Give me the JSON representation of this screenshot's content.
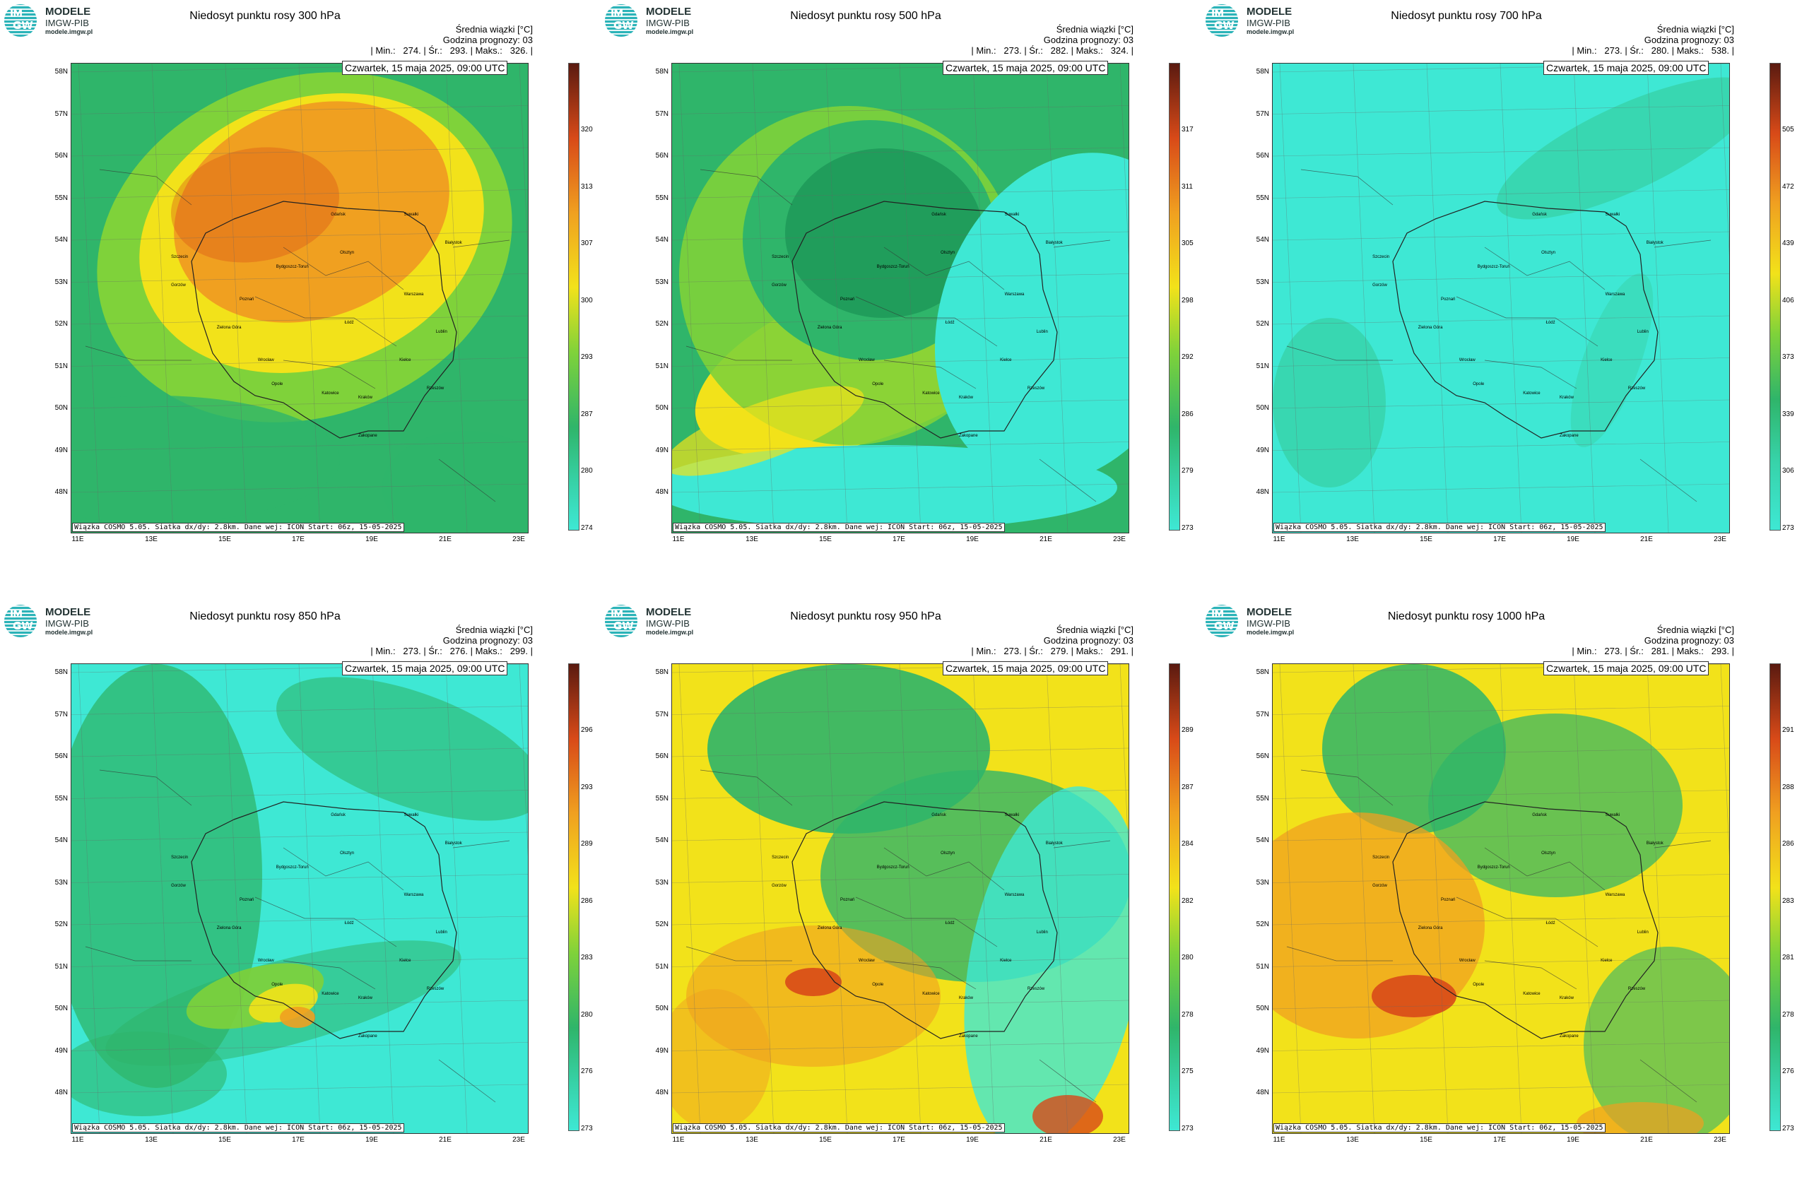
{
  "logo": {
    "brand": "MODELE",
    "org": "IMGW-PIB",
    "url": "modele.imgw.pl",
    "mark_top": "IM",
    "mark_bottom": "GW"
  },
  "common": {
    "stat_label": "Średnia wiązki [°C]",
    "forecast_hour": "Godzina prognozy: 03",
    "date": "Czwartek, 15 maja 2025, 09:00 UTC",
    "footer": "Wiązka COSMO 5.05. Siatka dx/dy: 2.8km. Dane wej: ICON Start: 06z, 15-05-2025",
    "lat_labels": [
      "58N",
      "57N",
      "56N",
      "55N",
      "54N",
      "53N",
      "52N",
      "51N",
      "50N",
      "49N",
      "48N"
    ],
    "lon_labels": [
      "11E",
      "13E",
      "15E",
      "17E",
      "19E",
      "21E",
      "23E"
    ],
    "cities": [
      "Gdańsk",
      "Olsztyn",
      "Suwałki",
      "Szczecin",
      "Białystok",
      "Bydgoszcz-Toruń",
      "Gorzów",
      "Poznań",
      "Warszawa",
      "Łódź",
      "Zielona Góra",
      "Lublin",
      "Wrocław",
      "Kielce",
      "Opole",
      "Katowice",
      "Kraków",
      "Rzeszów",
      "Zakopane"
    ]
  },
  "panels": [
    {
      "title": "Niedosyt punktu rosy 300 hPa",
      "min": "274.",
      "mean": "293.",
      "max": "326.",
      "scale": [
        "320",
        "313",
        "307",
        "300",
        "293",
        "287",
        "280",
        "274"
      ],
      "scheme": "p300"
    },
    {
      "title": "Niedosyt punktu rosy 500 hPa",
      "min": "273.",
      "mean": "282.",
      "max": "324.",
      "scale": [
        "317",
        "311",
        "305",
        "298",
        "292",
        "286",
        "279",
        "273"
      ],
      "scheme": "p500"
    },
    {
      "title": "Niedosyt punktu rosy 700 hPa",
      "min": "273.",
      "mean": "280.",
      "max": "538.",
      "scale": [
        "505",
        "472",
        "439",
        "406",
        "373",
        "339",
        "306",
        "273"
      ],
      "scheme": "p700"
    },
    {
      "title": "Niedosyt punktu rosy 850 hPa",
      "min": "273.",
      "mean": "276.",
      "max": "299.",
      "scale": [
        "296",
        "293",
        "289",
        "286",
        "283",
        "280",
        "276",
        "273"
      ],
      "scheme": "p850"
    },
    {
      "title": "Niedosyt punktu rosy 950 hPa",
      "min": "273.",
      "mean": "279.",
      "max": "291.",
      "scale": [
        "289",
        "287",
        "284",
        "282",
        "280",
        "278",
        "275",
        "273"
      ],
      "scheme": "p950"
    },
    {
      "title": "Niedosyt punktu rosy 1000 hPa",
      "min": "273.",
      "mean": "281.",
      "max": "293.",
      "scale": [
        "291",
        "288",
        "286",
        "283",
        "281",
        "278",
        "276",
        "273"
      ],
      "scheme": "p1000"
    }
  ],
  "colors": {
    "cyan": "#3ee8d4",
    "green": "#2fb56a",
    "lime": "#7fd23a",
    "yellow": "#f2e21a",
    "orange": "#f0a020",
    "red": "#d84a18",
    "dark": "#5a1a10"
  }
}
